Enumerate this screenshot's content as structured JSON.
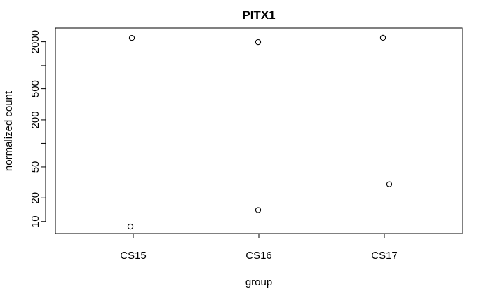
{
  "chart_data": {
    "type": "scatter",
    "title": "PITX1",
    "xlabel": "group",
    "ylabel": "normalized count",
    "y_scale": "log",
    "categories": [
      "CS15",
      "CS16",
      "CS17"
    ],
    "y_ticks": [
      10,
      20,
      50,
      100,
      200,
      500,
      1000,
      2000
    ],
    "y_tick_labels": [
      "10",
      "20",
      "50",
      "",
      "200",
      "500",
      "",
      "2000"
    ],
    "ylim": [
      7,
      3000
    ],
    "grid": false,
    "legend": "none",
    "points": [
      {
        "category": "CS15",
        "y": 2240
      },
      {
        "category": "CS15",
        "y": 8.6
      },
      {
        "category": "CS16",
        "y": 1980
      },
      {
        "category": "CS16",
        "y": 14
      },
      {
        "category": "CS17",
        "y": 2250
      },
      {
        "category": "CS17",
        "y": 30
      }
    ]
  }
}
